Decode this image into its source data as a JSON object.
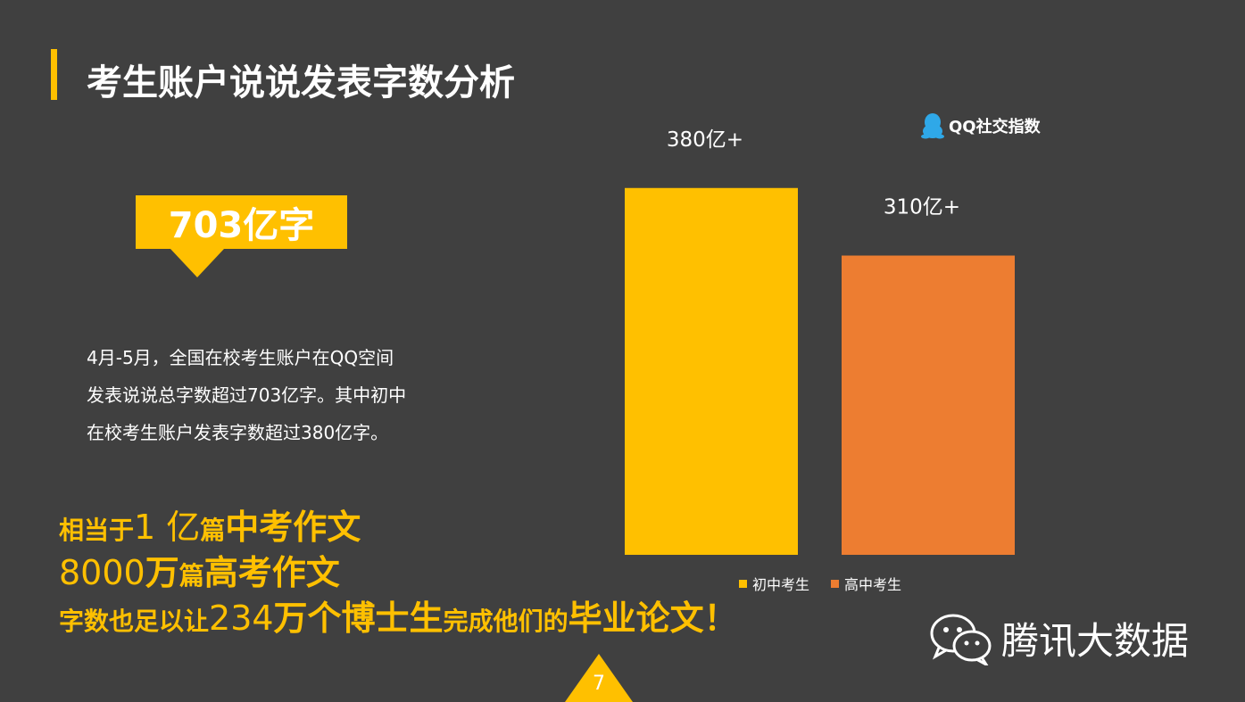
{
  "slide": {
    "title": "考生账户说说发表字数分析",
    "brand": "QQ社交指数",
    "callout": "703亿字",
    "description_lines": [
      "4月-5月，全国在校考生账户在QQ空间",
      "发表说说总字数超过703亿字。其中初中",
      "在校考生账户发表字数超过380亿字。"
    ],
    "highlight": {
      "line1": {
        "a": "相当于",
        "b": "1 亿",
        "c": "篇",
        "d": "中考作文"
      },
      "line2": {
        "a": "8000",
        "b": "万",
        "c": "篇",
        "d": "高考作文"
      },
      "line3": {
        "a": "字数也足以让",
        "b": "234",
        "c": "万个博士生",
        "d": "完成他们的",
        "e": "毕业论文！"
      }
    },
    "footer_brand": "腾讯大数据",
    "page_number": "7"
  },
  "colors": {
    "background": "#404040",
    "accent_yellow": "#ffc000",
    "accent_orange": "#ed7d31",
    "text": "#ffffff",
    "brand_blue": "#2fa8e8"
  },
  "icons": [
    "qq-penguin-icon",
    "wechat-icon"
  ],
  "chart_data": {
    "type": "bar",
    "categories": [
      "初中考生",
      "高中考生"
    ],
    "values": [
      380,
      310
    ],
    "data_labels": [
      "380亿+",
      "310亿+"
    ],
    "colors": [
      "#ffc000",
      "#ed7d31"
    ],
    "legend": [
      "初中考生",
      "高中考生"
    ],
    "legend_position": "bottom",
    "grid": false,
    "axes_visible": false,
    "ylim": [
      0,
      450
    ]
  }
}
